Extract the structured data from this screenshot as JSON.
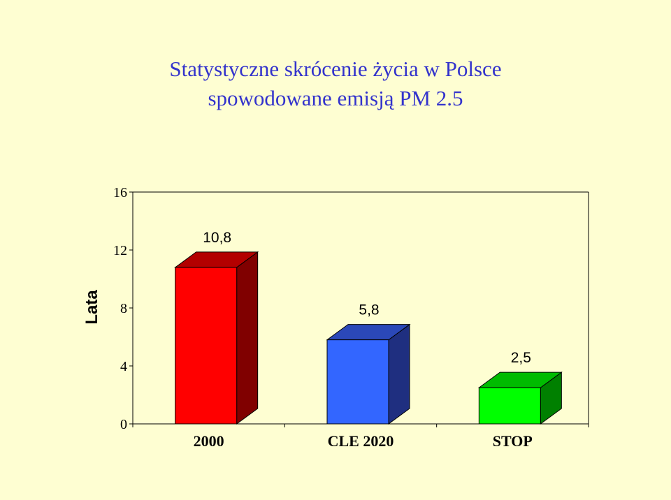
{
  "title_line1": "Statystyczne skrócenie życia w Polsce",
  "title_line2": "spowodowane emisją PM 2.5",
  "chart_data": {
    "type": "bar",
    "categories": [
      "2000",
      "CLE 2020",
      "STOP"
    ],
    "values": [
      10.8,
      5.8,
      2.5
    ],
    "data_labels": [
      "10,8",
      "5,8",
      "2,5"
    ],
    "ylabel": "Lata",
    "ylim": [
      0,
      16
    ],
    "yticks": [
      0,
      4,
      8,
      12,
      16
    ],
    "grid": false,
    "bar_colors": [
      {
        "front": "#ff0000",
        "top": "#b30000",
        "side": "#800000"
      },
      {
        "front": "#3366ff",
        "top": "#2b48b8",
        "side": "#1f2f80"
      },
      {
        "front": "#00ff00",
        "top": "#00bb00",
        "side": "#008000"
      }
    ],
    "background": "#fefed2"
  }
}
